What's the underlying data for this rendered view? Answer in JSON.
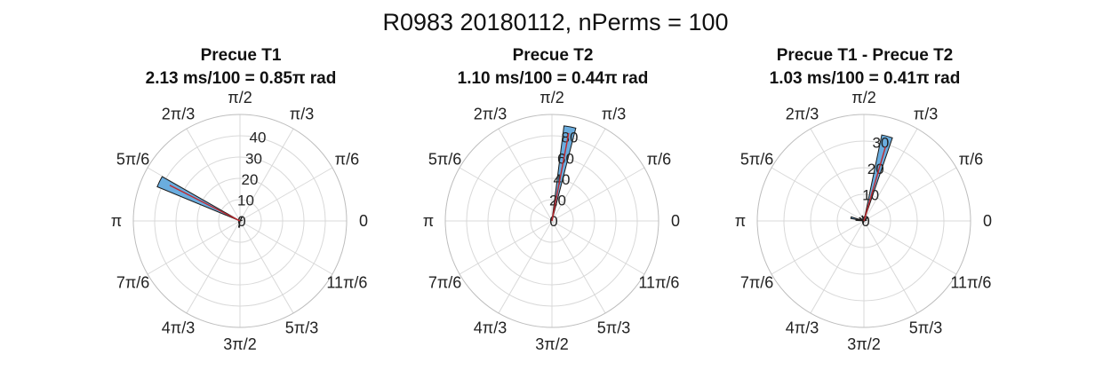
{
  "figure_title": "R0983 20180112, nPerms = 100",
  "angle_labels": [
    "0",
    "π/6",
    "π/3",
    "π/2",
    "2π/3",
    "5π/6",
    "π",
    "7π/6",
    "4π/3",
    "3π/2",
    "5π/3",
    "11π/6"
  ],
  "colors": {
    "bar_fill": "#6aaddf",
    "bar_edge": "#1a1a1a",
    "mean_vector": "#c0272d",
    "grid": "#d9d9d9",
    "outer": "#bdbdbd"
  },
  "chart_data": [
    {
      "type": "polar-histogram",
      "title": "Precue T1",
      "subtitle": "2.13 ms/100 = 0.85π rad",
      "r_ticks": [
        0,
        10,
        20,
        30,
        40
      ],
      "rlim": [
        0,
        50
      ],
      "bins": [
        {
          "theta_pi": 0.855,
          "width_pi": 0.04,
          "count": 42
        },
        {
          "theta_pi": 1.45,
          "width_pi": 0.04,
          "count": 3
        },
        {
          "theta_pi": 0.35,
          "width_pi": 0.04,
          "count": 2
        },
        {
          "theta_pi": 0.1,
          "width_pi": 0.04,
          "count": 1
        }
      ],
      "mean_vector": {
        "theta_pi": 0.85,
        "length": 37
      }
    },
    {
      "type": "polar-histogram",
      "title": "Precue T2",
      "subtitle": "1.10 ms/100 = 0.44π rad",
      "r_ticks": [
        0,
        20,
        40,
        60,
        80
      ],
      "rlim": [
        0,
        100
      ],
      "bins": [
        {
          "theta_pi": 0.44,
          "width_pi": 0.04,
          "count": 90
        }
      ],
      "mean_vector": {
        "theta_pi": 0.44,
        "length": 84
      }
    },
    {
      "type": "polar-histogram",
      "title": "Precue T1 - Precue T2",
      "subtitle": "1.03 ms/100 = 0.41π rad",
      "r_ticks": [
        0,
        10,
        20,
        30
      ],
      "rlim": [
        0,
        40
      ],
      "bins": [
        {
          "theta_pi": 0.415,
          "width_pi": 0.04,
          "count": 33
        },
        {
          "theta_pi": 0.92,
          "width_pi": 0.04,
          "count": 5
        },
        {
          "theta_pi": 0.96,
          "width_pi": 0.04,
          "count": 3
        },
        {
          "theta_pi": 0.8,
          "width_pi": 0.04,
          "count": 2
        },
        {
          "theta_pi": 0.6,
          "width_pi": 0.04,
          "count": 2
        },
        {
          "theta_pi": 0.25,
          "width_pi": 0.04,
          "count": 2
        },
        {
          "theta_pi": 0.1,
          "width_pi": 0.04,
          "count": 1
        },
        {
          "theta_pi": 1.4,
          "width_pi": 0.04,
          "count": 1
        }
      ],
      "mean_vector": {
        "theta_pi": 0.41,
        "length": 29
      }
    }
  ]
}
